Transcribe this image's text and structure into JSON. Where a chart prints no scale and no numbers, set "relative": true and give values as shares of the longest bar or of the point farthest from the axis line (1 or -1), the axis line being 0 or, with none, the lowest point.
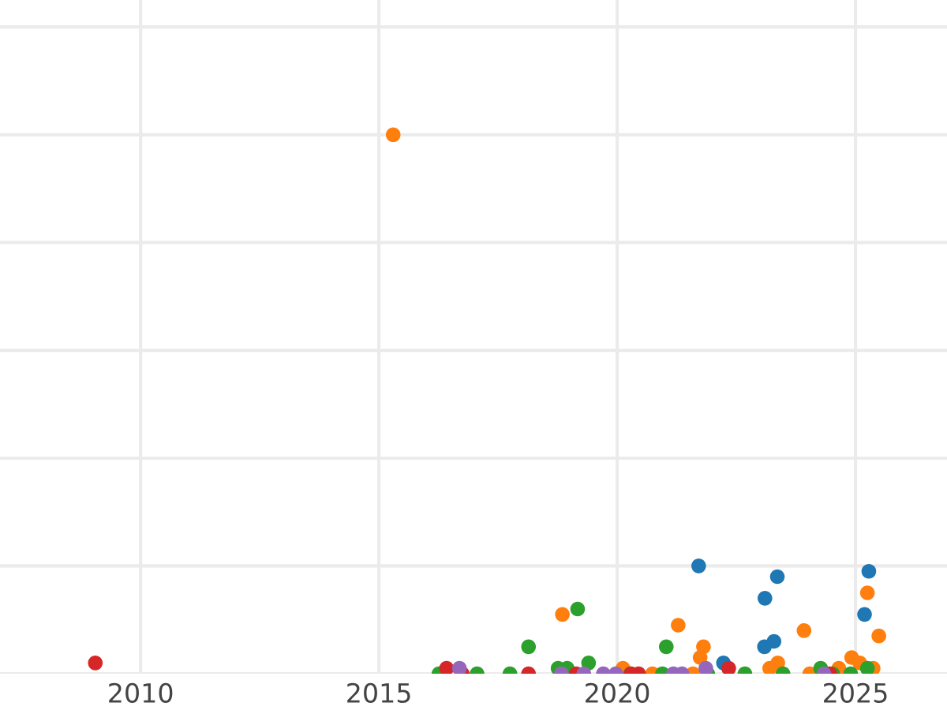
{
  "chart_data": {
    "type": "scatter",
    "relative": true,
    "grid": true,
    "tick_labels": "x",
    "marker": "circle",
    "xlim": [
      2007.05,
      2026.92
    ],
    "xticks": [
      2010,
      2015,
      2020,
      2025
    ],
    "series": [
      {
        "color": "#1f77b4",
        "x": [
          2021.71,
          2023.36,
          2023.1,
          2025.28,
          2025.19,
          2023.09,
          2023.29,
          2022.23
        ],
        "values": [
          0.2,
          0.18,
          0.14,
          0.19,
          0.11,
          0.05,
          0.06,
          0.02
        ]
      },
      {
        "color": "#ff7f0e",
        "x": [
          2015.3,
          2018.85,
          2021.28,
          2023.92,
          2025.25,
          2025.49,
          2021.81,
          2021.74,
          2023.37,
          2023.2,
          2024.92,
          2025.09,
          2025.37,
          2024.65,
          2020.12,
          2020.74,
          2021.59,
          2024.04
        ],
        "values": [
          1.0,
          0.11,
          0.09,
          0.08,
          0.15,
          0.07,
          0.05,
          0.03,
          0.02,
          0.01,
          0.03,
          0.02,
          0.01,
          0.01,
          0.01,
          0.0,
          0.0,
          0.0
        ]
      },
      {
        "color": "#2ca02c",
        "x": [
          2018.14,
          2019.17,
          2019.4,
          2021.03,
          2018.76,
          2018.95,
          2016.26,
          2017.06,
          2017.75,
          2020.28,
          2020.95,
          2021.9,
          2022.68,
          2023.48,
          2024.27,
          2024.52,
          2024.9,
          2025.25
        ],
        "values": [
          0.05,
          0.12,
          0.02,
          0.05,
          0.01,
          0.01,
          0.0,
          0.0,
          0.0,
          0.0,
          0.0,
          0.0,
          0.0,
          0.0,
          0.01,
          0.0,
          0.0,
          0.01
        ]
      },
      {
        "color": "#d62728",
        "x": [
          2009.05,
          2016.42,
          2016.75,
          2018.14,
          2019.14,
          2020.29,
          2020.45,
          2022.34,
          2024.46
        ],
        "values": [
          0.02,
          0.01,
          0.0,
          0.0,
          0.0,
          0.0,
          0.0,
          0.01,
          0.0
        ]
      },
      {
        "color": "#9467bd",
        "x": [
          2016.69,
          2018.83,
          2019.3,
          2019.71,
          2019.97,
          2021.18,
          2021.36,
          2021.86,
          2024.34
        ],
        "values": [
          0.01,
          0.0,
          0.0,
          0.0,
          0.0,
          0.0,
          0.0,
          0.01,
          0.0
        ]
      }
    ]
  }
}
